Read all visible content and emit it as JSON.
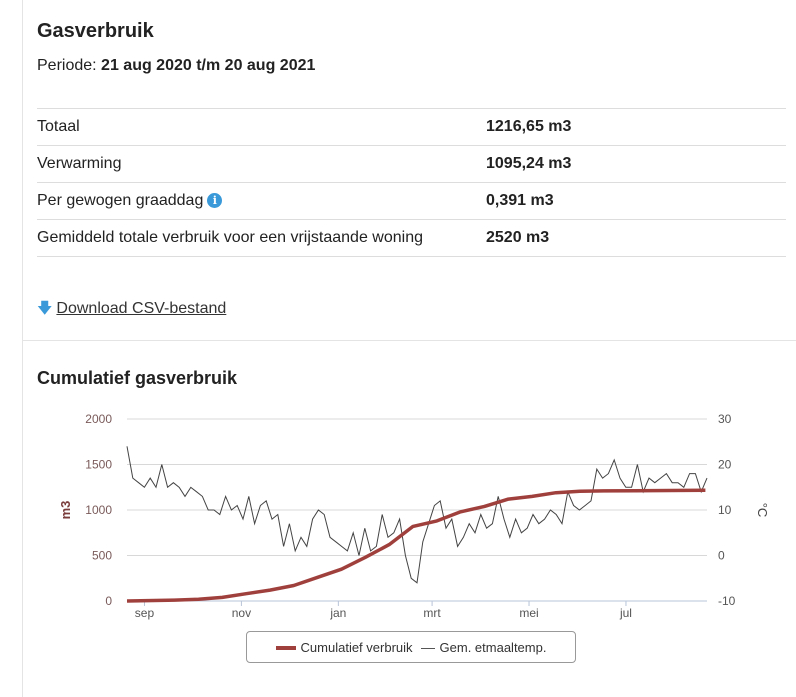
{
  "title": "Gasverbruik",
  "periode_label": "Periode:",
  "periode_value": "21 aug 2020 t/m 20 aug 2021",
  "rows": [
    {
      "label": "Totaal",
      "value": "1216,65 m3"
    },
    {
      "label": "Verwarming",
      "value": "1095,24 m3"
    },
    {
      "label": "Per gewogen graaddag",
      "value": "0,391 m3",
      "info": "i"
    },
    {
      "label": "Gemiddeld totale verbruik voor een vrijstaande woning",
      "value": "2520 m3"
    }
  ],
  "download_label": "Download CSV-bestand",
  "download_icon": "arrow-down-icon",
  "chart_title": "Cumulatief gasverbruik",
  "chart_data": {
    "type": "line",
    "x_unit": "days since 21 aug 2020",
    "xlim": [
      0,
      365
    ],
    "x_ticks": [
      {
        "day": 11,
        "label": "sep"
      },
      {
        "day": 72,
        "label": "nov"
      },
      {
        "day": 133,
        "label": "jan"
      },
      {
        "day": 192,
        "label": "mrt"
      },
      {
        "day": 253,
        "label": "mei"
      },
      {
        "day": 314,
        "label": "jul"
      }
    ],
    "ylabel": "m3",
    "ylim": [
      0,
      2000
    ],
    "yticks": [
      0,
      500,
      1000,
      1500,
      2000
    ],
    "y2label": "°C",
    "y2lim": [
      -10,
      30
    ],
    "y2ticks": [
      -10,
      0,
      10,
      20,
      30
    ],
    "grid": true,
    "legend": "bottom-center",
    "colors": {
      "cumulative": "#a0403d",
      "temp": "#444444",
      "grid": "#d8d8d8",
      "left_axis": "#7a3b3b"
    },
    "series": [
      {
        "name": "Cumulatief verbruik",
        "axis": "left",
        "x": [
          0,
          30,
          45,
          60,
          75,
          90,
          105,
          120,
          135,
          150,
          165,
          180,
          195,
          210,
          225,
          240,
          255,
          270,
          285,
          300,
          364
        ],
        "y": [
          0,
          10,
          20,
          40,
          80,
          120,
          170,
          260,
          350,
          480,
          620,
          820,
          880,
          980,
          1040,
          1120,
          1150,
          1190,
          1205,
          1210,
          1217
        ]
      },
      {
        "name": "Gem. etmaaltemp.",
        "axis": "right",
        "values": [
          24,
          17,
          16,
          15,
          17,
          15,
          20,
          15,
          16,
          15,
          13,
          15,
          14,
          13,
          10,
          10,
          9,
          13,
          10,
          11,
          8,
          13,
          7,
          11,
          12,
          8,
          9,
          2,
          7,
          1,
          4,
          2,
          8,
          10,
          9,
          4,
          3,
          2,
          1,
          5,
          0,
          6,
          1,
          2,
          9,
          4,
          5,
          8,
          0,
          -5,
          -6,
          3,
          7,
          11,
          12,
          6,
          8,
          2,
          4,
          7,
          5,
          9,
          6,
          7,
          13,
          8,
          4,
          8,
          5,
          6,
          9,
          7,
          8,
          10,
          9,
          7,
          14,
          11,
          10,
          11,
          12,
          19,
          17,
          18,
          21,
          17,
          15,
          15,
          20,
          14,
          17,
          16,
          17,
          18,
          16,
          16,
          15,
          18,
          18,
          14,
          17
        ]
      }
    ]
  }
}
